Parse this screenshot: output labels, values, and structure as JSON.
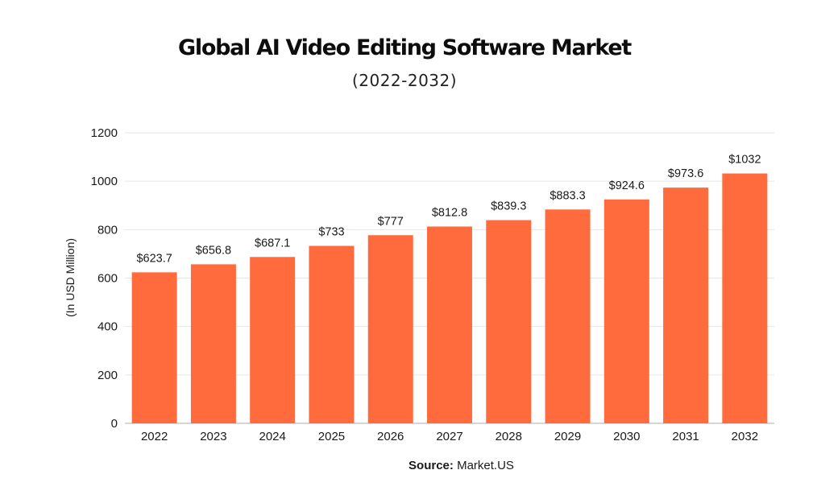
{
  "title": "Global AI Video Editing Software Market",
  "subtitle": "(2022-2032)",
  "source": {
    "label": "Source:",
    "value": "Market.US"
  },
  "colors": {
    "bar": "#ff6b3d",
    "grid": "#e6e6e6",
    "axis": "#bdbdbd"
  },
  "chart_data": {
    "type": "bar",
    "categories": [
      "2022",
      "2023",
      "2024",
      "2025",
      "2026",
      "2027",
      "2028",
      "2029",
      "2030",
      "2031",
      "2032"
    ],
    "values": [
      623.7,
      656.8,
      687.1,
      733,
      777,
      812.8,
      839.3,
      883.3,
      924.6,
      973.6,
      1032
    ],
    "data_labels": [
      "$623.7",
      "$656.8",
      "$687.1",
      "$733",
      "$777",
      "$812.8",
      "$839.3",
      "$883.3",
      "$924.6",
      "$973.6",
      "$1032"
    ],
    "ylabel": "(In USD Million)",
    "ylim": [
      0,
      1200
    ],
    "yticks": [
      0,
      200,
      400,
      600,
      800,
      1000,
      1200
    ],
    "grid": true,
    "legend": false
  }
}
